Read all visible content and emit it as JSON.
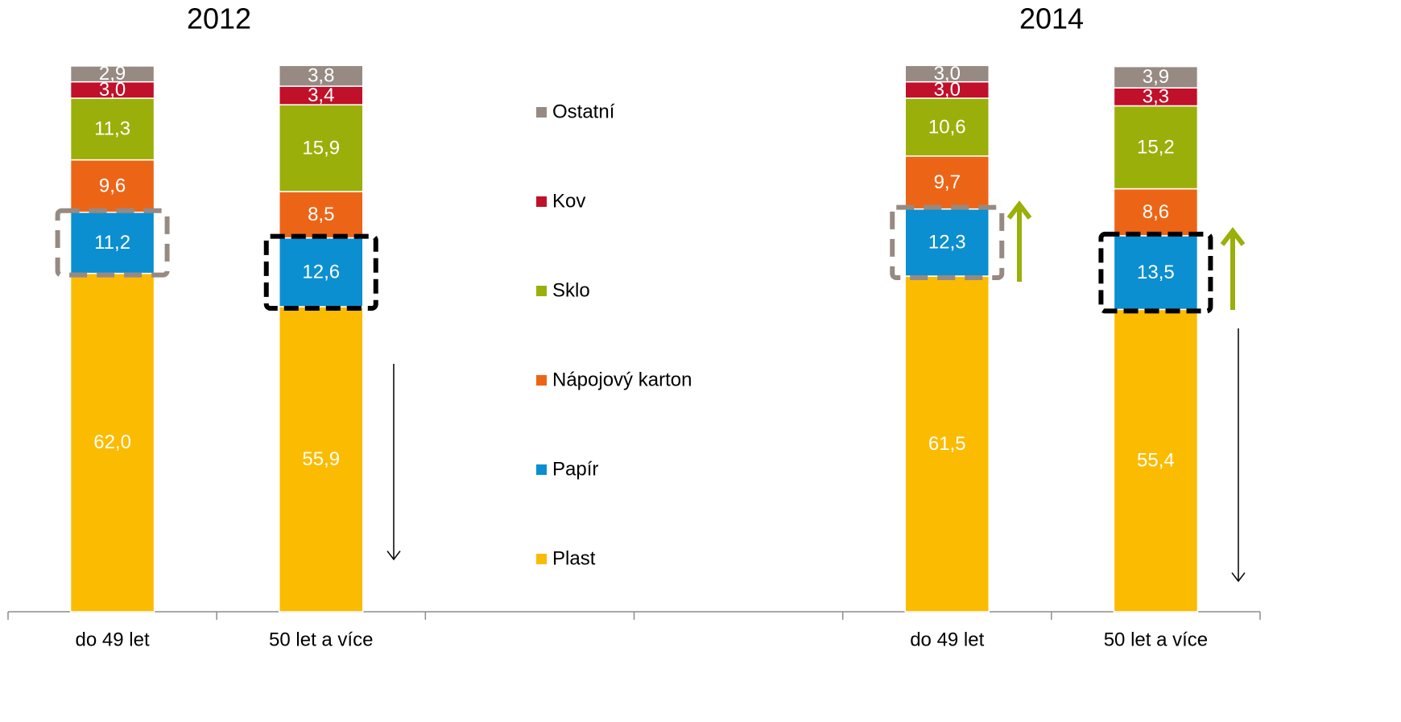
{
  "chart_data": {
    "type": "stacked_bar",
    "group_titles": [
      "2012",
      "2014"
    ],
    "categories": [
      "do 49 let",
      "50 let a více",
      null,
      null,
      "do 49 let",
      "50 let a více"
    ],
    "ylim": [
      0,
      100
    ],
    "series": [
      {
        "name": "Plast",
        "color": "#fbbb00",
        "values": [
          62.0,
          55.9,
          null,
          null,
          61.5,
          55.4
        ],
        "value_labels": [
          "62,0",
          "55,9",
          null,
          null,
          "61,5",
          "55,4"
        ]
      },
      {
        "name": "Papír",
        "color": "#0b8fd0",
        "values": [
          11.2,
          12.6,
          null,
          null,
          12.3,
          13.5
        ],
        "value_labels": [
          "11,2",
          "12,6",
          null,
          null,
          "12,3",
          "13,5"
        ]
      },
      {
        "name": "Nápojový karton",
        "color": "#ec6517",
        "values": [
          9.6,
          8.5,
          null,
          null,
          9.7,
          8.6
        ],
        "value_labels": [
          "9,6",
          "8,5",
          null,
          null,
          "9,7",
          "8,6"
        ]
      },
      {
        "name": "Sklo",
        "color": "#9baf0a",
        "values": [
          11.3,
          15.9,
          null,
          null,
          10.6,
          15.2
        ],
        "value_labels": [
          "11,3",
          "15,9",
          null,
          null,
          "10,6",
          "15,2"
        ]
      },
      {
        "name": "Kov",
        "color": "#c0102a",
        "values": [
          3.0,
          3.4,
          null,
          null,
          3.0,
          3.3
        ],
        "value_labels": [
          "3,0",
          "3,4",
          null,
          null,
          "3,0",
          "3,3"
        ]
      },
      {
        "name": "Ostatní",
        "color": "#968a83",
        "values": [
          2.9,
          3.8,
          null,
          null,
          3.0,
          3.9
        ],
        "value_labels": [
          "2,9",
          "3,8",
          null,
          null,
          "3,0",
          "3,9"
        ]
      }
    ]
  }
}
